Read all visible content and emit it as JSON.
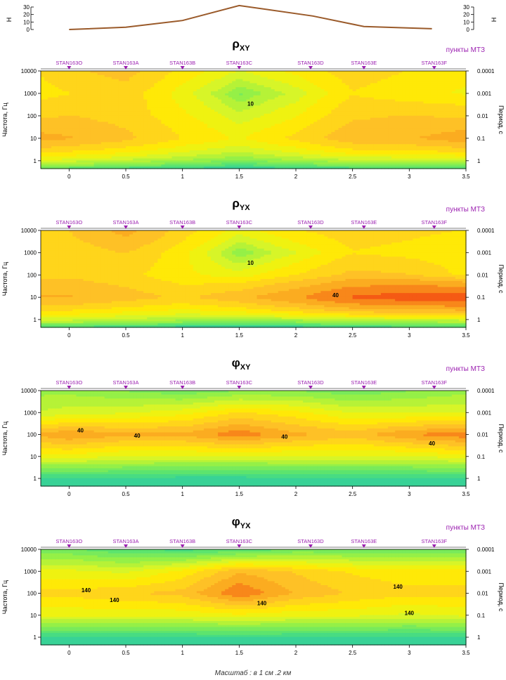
{
  "elevation": {
    "ylabel": "H",
    "yticks": [
      "30",
      "20",
      "10",
      "0"
    ],
    "profile_x_km": [
      0,
      0.5,
      1,
      1.5,
      2.15,
      2.6,
      3.2
    ],
    "profile_h": [
      0,
      3,
      12,
      32,
      18,
      4,
      1
    ]
  },
  "stations": [
    {
      "name": "STAN163O",
      "x_km": 0
    },
    {
      "name": "STAN163A",
      "x_km": 0.5
    },
    {
      "name": "STAN163B",
      "x_km": 1
    },
    {
      "name": "STAN163C",
      "x_km": 1.5
    },
    {
      "name": "STAN163D",
      "x_km": 2.13
    },
    {
      "name": "STAN163E",
      "x_km": 2.6
    },
    {
      "name": "STAN163F",
      "x_km": 3.22
    }
  ],
  "common": {
    "stations_label": "пункты МТЗ",
    "left_axis_label": "Частота, Гц",
    "right_axis_label": "Период, с",
    "freq_ticks": [
      "10000",
      "1000",
      "100",
      "10",
      "1"
    ],
    "period_ticks": [
      "0.0001",
      "0.001",
      "0.01",
      "0.1",
      "1"
    ],
    "x_ticks": [
      "0",
      "0.5",
      "1",
      "1.5",
      "2",
      "2.5",
      "3",
      "3.5"
    ],
    "x_range": [
      -0.25,
      3.5
    ]
  },
  "footer": "Масштаб : в 1 см .2 км",
  "chart_data": [
    {
      "type": "heatmap",
      "title_main": "ρ",
      "title_sub": "XY",
      "quantity": "apparent resistivity",
      "x": [
        -0.25,
        0,
        0.5,
        1,
        1.5,
        2,
        2.5,
        3,
        3.5
      ],
      "log10_freq": [
        4,
        3,
        2,
        1,
        0,
        -0.35
      ],
      "z": [
        [
          25,
          30,
          35,
          22,
          14,
          20,
          28,
          24,
          20
        ],
        [
          22,
          24,
          28,
          16,
          6,
          12,
          24,
          20,
          18
        ],
        [
          30,
          32,
          28,
          20,
          12,
          18,
          30,
          32,
          30
        ],
        [
          45,
          42,
          34,
          24,
          18,
          26,
          38,
          40,
          48
        ],
        [
          14,
          12,
          10,
          8,
          6,
          8,
          10,
          10,
          10
        ],
        [
          4,
          4,
          3,
          2.5,
          2,
          2.5,
          3,
          3.5,
          4
        ]
      ],
      "labels": [
        {
          "text": "10",
          "x": 1.6,
          "lf": 2.55
        }
      ]
    },
    {
      "type": "heatmap",
      "title_main": "ρ",
      "title_sub": "YX",
      "quantity": "apparent resistivity",
      "x": [
        -0.25,
        0,
        0.5,
        1,
        1.5,
        2,
        2.5,
        3,
        3.5
      ],
      "log10_freq": [
        4,
        3,
        2,
        1,
        0,
        -0.35
      ],
      "z": [
        [
          28,
          32,
          45,
          28,
          16,
          24,
          28,
          26,
          24
        ],
        [
          24,
          26,
          32,
          20,
          6,
          14,
          24,
          22,
          20
        ],
        [
          30,
          30,
          26,
          20,
          16,
          24,
          34,
          32,
          22
        ],
        [
          42,
          42,
          36,
          30,
          38,
          52,
          72,
          80,
          82
        ],
        [
          12,
          12,
          10,
          9,
          8,
          9,
          10,
          11,
          12
        ],
        [
          3,
          3,
          2.5,
          2,
          1.8,
          2,
          2.5,
          3,
          3
        ]
      ],
      "labels": [
        {
          "text": "10",
          "x": 1.6,
          "lf": 2.55
        },
        {
          "text": "40",
          "x": 2.35,
          "lf": 1.1
        }
      ]
    },
    {
      "type": "heatmap",
      "title_main": "φ",
      "title_sub": "XY",
      "quantity": "impedance phase",
      "x": [
        -0.25,
        0,
        0.5,
        1,
        1.5,
        2,
        2.5,
        3,
        3.5
      ],
      "log10_freq": [
        4,
        3,
        2,
        1,
        0,
        -0.35
      ],
      "z": [
        [
          22,
          22,
          20,
          18,
          20,
          20,
          18,
          20,
          22
        ],
        [
          26,
          27,
          28,
          30,
          34,
          32,
          28,
          28,
          28
        ],
        [
          40,
          42,
          40,
          40,
          44,
          40,
          38,
          42,
          44
        ],
        [
          30,
          30,
          28,
          28,
          28,
          28,
          28,
          28,
          30
        ],
        [
          12,
          12,
          12,
          11,
          11,
          12,
          12,
          12,
          12
        ],
        [
          10,
          10,
          10,
          10,
          10,
          10,
          10,
          9,
          10
        ]
      ],
      "labels": [
        {
          "text": "40",
          "x": 0.1,
          "lf": 2.2
        },
        {
          "text": "40",
          "x": 0.6,
          "lf": 1.95
        },
        {
          "text": "40",
          "x": 1.9,
          "lf": 1.9
        },
        {
          "text": "40",
          "x": 3.2,
          "lf": 1.6
        }
      ]
    },
    {
      "type": "heatmap",
      "title_main": "φ",
      "title_sub": "YX",
      "quantity": "impedance phase",
      "x": [
        -0.25,
        0,
        0.5,
        1,
        1.5,
        2,
        2.5,
        3,
        3.5
      ],
      "log10_freq": [
        4,
        3,
        2,
        1,
        0,
        -0.35
      ],
      "z": [
        [
          128,
          128,
          126,
          125,
          126,
          128,
          128,
          128,
          128
        ],
        [
          136,
          136,
          135,
          138,
          143,
          141,
          139,
          138,
          138
        ],
        [
          140,
          140,
          141,
          142,
          147,
          143,
          141,
          140,
          140
        ],
        [
          136,
          136,
          136,
          136,
          137,
          136,
          136,
          135,
          136
        ],
        [
          124,
          124,
          124,
          124,
          124,
          124,
          124,
          124,
          124
        ],
        [
          122,
          122,
          122,
          122,
          122,
          122,
          122,
          122,
          122
        ]
      ],
      "labels": [
        {
          "text": "140",
          "x": 0.15,
          "lf": 2.15
        },
        {
          "text": "140",
          "x": 0.4,
          "lf": 1.7
        },
        {
          "text": "140",
          "x": 1.7,
          "lf": 1.55
        },
        {
          "text": "140",
          "x": 2.9,
          "lf": 2.3
        },
        {
          "text": "140",
          "x": 3.0,
          "lf": 1.1
        }
      ]
    }
  ]
}
